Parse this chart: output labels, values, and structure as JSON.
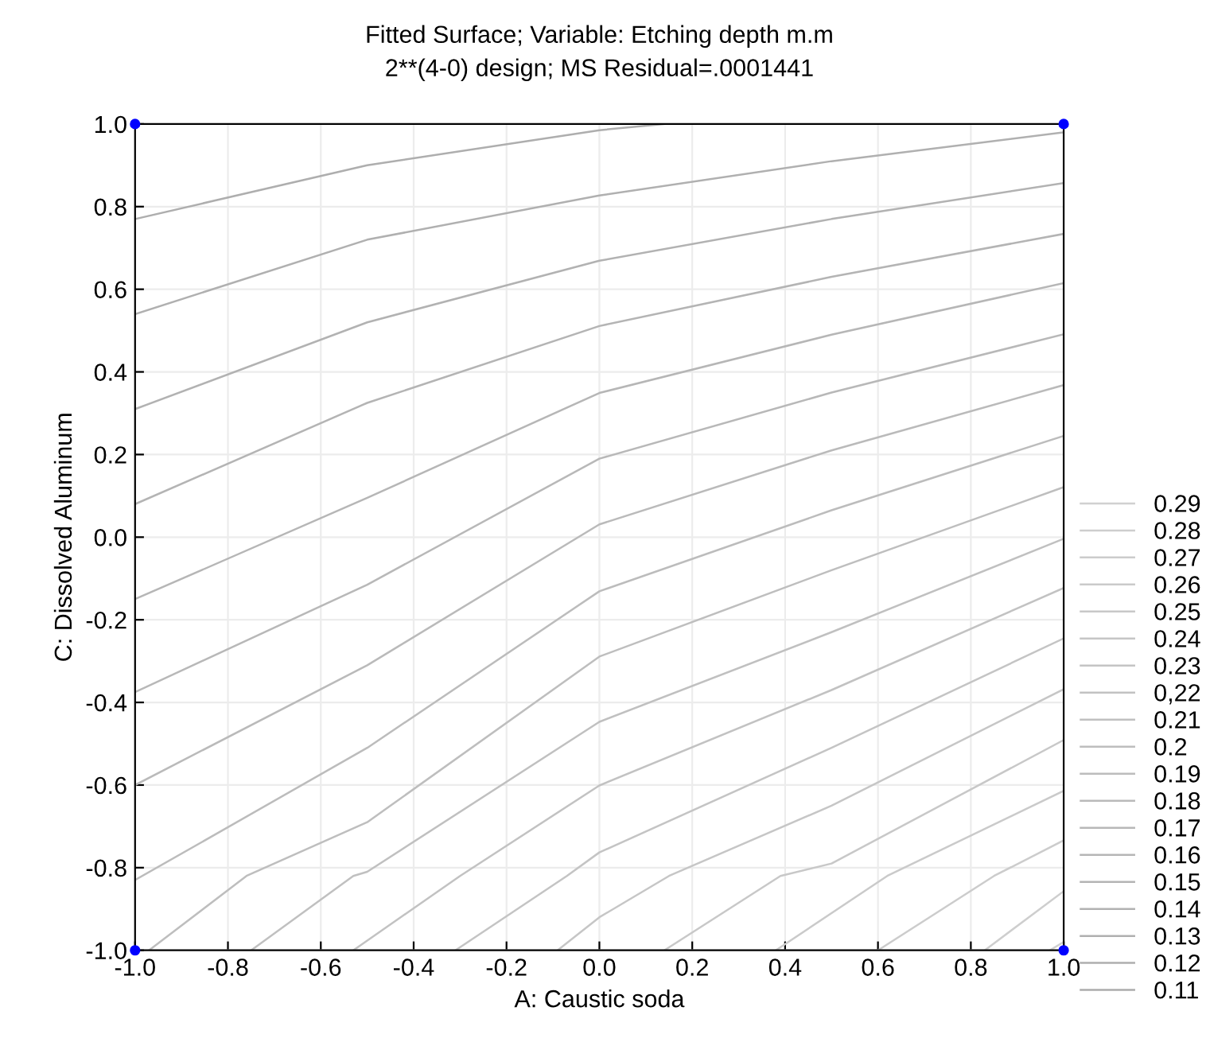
{
  "chart_data": {
    "type": "line",
    "title": "Fitted Surface; Variable: Etching depth m.m",
    "subtitle": "2**(4-0) design; MS Residual=.0001441",
    "xlabel": "A: Caustic soda",
    "ylabel": "C: Dissolved Aluminum",
    "xlim": [
      -1.0,
      1.0
    ],
    "ylim": [
      -1.0,
      1.0
    ],
    "xticks": [
      {
        "value": -1.0,
        "label": "-1.0"
      },
      {
        "value": -0.8,
        "label": "-0.8"
      },
      {
        "value": -0.6,
        "label": "-0.6"
      },
      {
        "value": -0.4,
        "label": "-0.4"
      },
      {
        "value": -0.2,
        "label": "-0.2"
      },
      {
        "value": 0.0,
        "label": "0.0"
      },
      {
        "value": 0.2,
        "label": "0.2"
      },
      {
        "value": 0.4,
        "label": "0.4"
      },
      {
        "value": 0.6,
        "label": "0.6"
      },
      {
        "value": 0.8,
        "label": "0.8"
      },
      {
        "value": 1.0,
        "label": "1.0"
      }
    ],
    "yticks": [
      {
        "value": -1.0,
        "label": "-1.0"
      },
      {
        "value": -0.8,
        "label": "-0.8"
      },
      {
        "value": -0.6,
        "label": "-0.6"
      },
      {
        "value": -0.4,
        "label": "-0.4"
      },
      {
        "value": -0.2,
        "label": "-0.2"
      },
      {
        "value": 0.0,
        "label": "0.0"
      },
      {
        "value": 0.2,
        "label": "0.2"
      },
      {
        "value": 0.4,
        "label": "0.4"
      },
      {
        "value": 0.6,
        "label": "0.6"
      },
      {
        "value": 0.8,
        "label": "0.8"
      },
      {
        "value": 1.0,
        "label": "1.0"
      }
    ],
    "grid": true,
    "legend": "bottom right",
    "marker": "none",
    "line_style": "solid",
    "series": [
      {
        "name": "0.29",
        "color": "#d0d0d0",
        "x": [
          0.97,
          1.0
        ],
        "values": [
          -1.0,
          -0.98
        ]
      },
      {
        "name": "0.28",
        "color": "#cecece",
        "x": [
          0.83,
          1.0
        ],
        "values": [
          -1.0,
          -0.857
        ]
      },
      {
        "name": "0.27",
        "color": "#cccccc",
        "x": [
          0.6,
          0.85,
          1.0
        ],
        "values": [
          -1.0,
          -0.82,
          -0.734
        ]
      },
      {
        "name": "0.26",
        "color": "#cacaca",
        "x": [
          0.38,
          0.62,
          1.0
        ],
        "values": [
          -1.0,
          -0.82,
          -0.614
        ]
      },
      {
        "name": "0.25",
        "color": "#c8c8c8",
        "x": [
          0.14,
          0.39,
          0.5,
          1.0
        ],
        "values": [
          -1.0,
          -0.82,
          -0.79,
          -0.491
        ]
      },
      {
        "name": "0.24",
        "color": "#c6c6c6",
        "x": [
          -0.09,
          0.0,
          0.15,
          0.5,
          1.0
        ],
        "values": [
          -1.0,
          -0.92,
          -0.82,
          -0.65,
          -0.368
        ]
      },
      {
        "name": "0.23",
        "color": "#c4c4c4",
        "x": [
          -0.31,
          -0.07,
          0.0,
          0.5,
          1.0
        ],
        "values": [
          -1.0,
          -0.82,
          -0.763,
          -0.51,
          -0.245
        ]
      },
      {
        "name": "0,22",
        "color": "#c2c2c2",
        "x": [
          -0.53,
          -0.3,
          0.0,
          0.5,
          1.0
        ],
        "values": [
          -1.0,
          -0.82,
          -0.601,
          -0.37,
          -0.123
        ]
      },
      {
        "name": "0.21",
        "color": "#c0c0c0",
        "x": [
          -0.75,
          -0.53,
          -0.5,
          0.0,
          0.5,
          1.0
        ],
        "values": [
          -1.0,
          -0.82,
          -0.81,
          -0.447,
          -0.23,
          -0.004
        ]
      },
      {
        "name": "0.2",
        "color": "#bebebe",
        "x": [
          -0.97,
          -0.76,
          -0.5,
          0.0,
          0.5,
          1.0
        ],
        "values": [
          -1.0,
          -0.82,
          -0.69,
          -0.289,
          -0.08,
          0.121
        ]
      },
      {
        "name": "0.19",
        "color": "#bcbcbc",
        "x": [
          -1.0,
          -0.5,
          0.0,
          0.5,
          1.0
        ],
        "values": [
          -0.83,
          -0.51,
          -0.131,
          0.065,
          0.245
        ]
      },
      {
        "name": "0.18",
        "color": "#bababa",
        "x": [
          -1.0,
          -0.5,
          0.0,
          0.5,
          1.0
        ],
        "values": [
          -0.6,
          -0.31,
          0.031,
          0.21,
          0.368
        ]
      },
      {
        "name": "0.17",
        "color": "#b8b8b8",
        "x": [
          -1.0,
          -0.5,
          0.0,
          0.5,
          1.0
        ],
        "values": [
          -0.375,
          -0.115,
          0.19,
          0.35,
          0.491
        ]
      },
      {
        "name": "0.16",
        "color": "#b6b6b6",
        "x": [
          -1.0,
          -0.5,
          0.0,
          0.5,
          1.0
        ],
        "values": [
          -0.15,
          0.095,
          0.349,
          0.49,
          0.615
        ]
      },
      {
        "name": "0.15",
        "color": "#b4b4b4",
        "x": [
          -1.0,
          -0.5,
          0.0,
          0.5,
          1.0
        ],
        "values": [
          0.08,
          0.325,
          0.511,
          0.63,
          0.734
        ]
      },
      {
        "name": "0.14",
        "color": "#b2b2b2",
        "x": [
          -1.0,
          -0.5,
          0.0,
          0.5,
          1.0
        ],
        "values": [
          0.31,
          0.52,
          0.669,
          0.77,
          0.857
        ]
      },
      {
        "name": "0.13",
        "color": "#b0b0b0",
        "x": [
          -1.0,
          -0.5,
          0.0,
          0.5,
          1.0
        ],
        "values": [
          0.54,
          0.72,
          0.827,
          0.91,
          0.98
        ]
      },
      {
        "name": "0.12",
        "color": "#aeaeae",
        "x": [
          -1.0,
          -0.5,
          0.0,
          0.14
        ],
        "values": [
          0.77,
          0.9,
          0.985,
          1.0
        ]
      },
      {
        "name": "0.11",
        "color": "#acacac"
      },
      {
        "type": "scatter",
        "color": "#0000ff",
        "marker": "circle",
        "x": [
          -1.0,
          -1.0,
          1.0,
          1.0
        ],
        "values": [
          -1.0,
          1.0,
          -1.0,
          1.0
        ]
      }
    ]
  }
}
